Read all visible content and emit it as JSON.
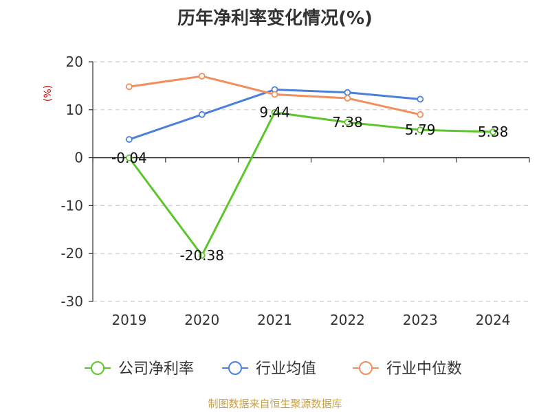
{
  "chart_data": {
    "type": "line",
    "title": "历年净利率变化情况(%)",
    "ylabel": "(%)",
    "xlabel": "",
    "categories": [
      "2019",
      "2020",
      "2021",
      "2022",
      "2023",
      "2024"
    ],
    "ylim": [
      -30,
      20
    ],
    "yticks": [
      20,
      10,
      0,
      -10,
      -20,
      -30
    ],
    "grid": true,
    "legend_position": "bottom",
    "series": [
      {
        "name": "公司净利率",
        "color": "#5cc52b",
        "values": [
          -0.04,
          -20.38,
          9.44,
          7.38,
          5.79,
          5.38
        ],
        "labels": [
          "-0.04",
          "-20.38",
          "9.44",
          "7.38",
          "5.79",
          "5.38"
        ]
      },
      {
        "name": "行业均值",
        "color": "#4a7fdb",
        "values": [
          3.8,
          9.0,
          14.2,
          13.6,
          12.2,
          null
        ]
      },
      {
        "name": "行业中位数",
        "color": "#f28e5c",
        "values": [
          14.8,
          17.0,
          13.2,
          12.4,
          9.0,
          null
        ]
      }
    ]
  },
  "source": "制图数据来自恒生聚源数据库"
}
